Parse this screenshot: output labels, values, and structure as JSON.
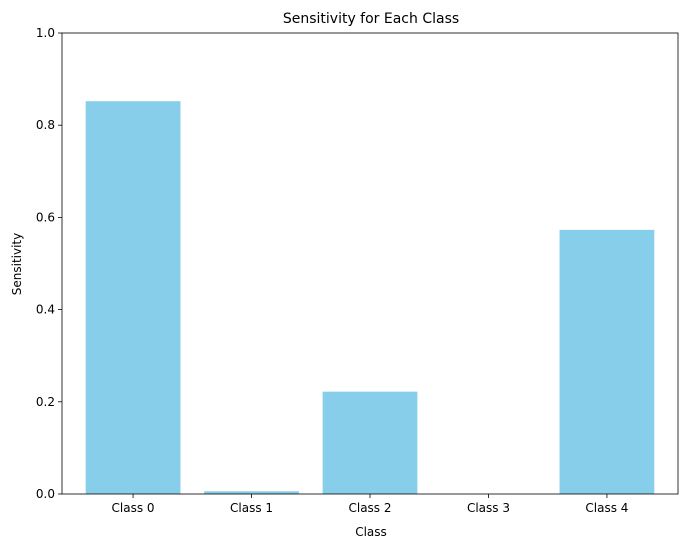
{
  "chart_data": {
    "type": "bar",
    "title": "Sensitivity for Each Class",
    "xlabel": "Class",
    "ylabel": "Sensitivity",
    "categories": [
      "Class 0",
      "Class 1",
      "Class 2",
      "Class 3",
      "Class 4"
    ],
    "values": [
      0.852,
      0.006,
      0.222,
      0.0,
      0.573
    ],
    "ylim": [
      0,
      1
    ],
    "yticks": [
      "0.0",
      "0.2",
      "0.4",
      "0.6",
      "0.8",
      "1.0"
    ],
    "grid": false,
    "legend": "none",
    "bar_color": "#87CEEB"
  }
}
